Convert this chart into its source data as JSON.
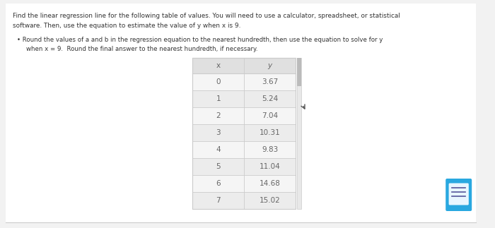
{
  "title_line1": "Find the linear regression line for the following table of values. You will need to use a calculator, spreadsheet, or statistical",
  "title_line2": "software. Then, use the equation to estimate the value of y when x is 9.",
  "bullet_line1": "• Round the values of a and b in the regression equation to the nearest hundredth, then use the equation to solve for y",
  "bullet_line2": "   when x = 9.  Round the final answer to the nearest hundredth, if necessary.",
  "col_x": "x",
  "col_y": "y",
  "x_vals": [
    "0",
    "1",
    "2",
    "3",
    "4",
    "5",
    "6",
    "7"
  ],
  "y_vals": [
    "3.67",
    "5.24",
    "7.04",
    "10.31",
    "9.83",
    "11.04",
    "14.68",
    "15.02"
  ],
  "bg_color": "#f2f2f2",
  "panel_color": "#ffffff",
  "table_bg_even": "#f5f5f5",
  "table_bg_odd": "#ececec",
  "table_header_bg": "#e0e0e0",
  "table_border_color": "#cccccc",
  "text_color": "#333333",
  "table_text_color": "#666666",
  "scrollbar_color": "#bbbbbb",
  "icon_color": "#29a8e0",
  "icon_inner": "#e8f6ff"
}
